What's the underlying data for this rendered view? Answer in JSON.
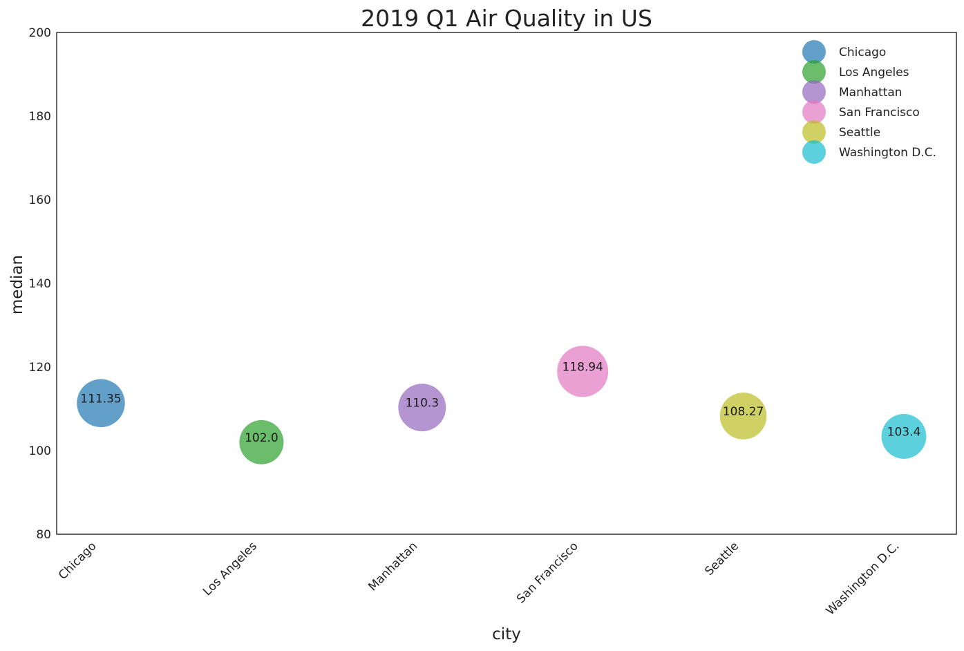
{
  "chart_data": {
    "type": "scatter",
    "title": "2019 Q1 Air Quality in US",
    "xlabel": "city",
    "ylabel": "median",
    "ylim": [
      80,
      200
    ],
    "yticks": [
      80,
      100,
      120,
      140,
      160,
      180,
      200
    ],
    "grid": false,
    "legend": "top-right",
    "categories": [
      "Chicago",
      "Los Angeles",
      "Manhattan",
      "San Francisco",
      "Seattle",
      "Washington D.C."
    ],
    "series": [
      {
        "name": "Chicago",
        "x": "Chicago",
        "y": 111.35,
        "label": "111.35",
        "color": "#1f77b4"
      },
      {
        "name": "Los Angeles",
        "x": "Los Angeles",
        "y": 102.0,
        "label": "102.0",
        "color": "#2ca02c"
      },
      {
        "name": "Manhattan",
        "x": "Manhattan",
        "y": 110.3,
        "label": "110.3",
        "color": "#9467bd"
      },
      {
        "name": "San Francisco",
        "x": "San Francisco",
        "y": 118.94,
        "label": "118.94",
        "color": "#e377c2"
      },
      {
        "name": "Seattle",
        "x": "Seattle",
        "y": 108.27,
        "label": "108.27",
        "color": "#bcbd22"
      },
      {
        "name": "Washington D.C.",
        "x": "Washington D.C.",
        "y": 103.4,
        "label": "103.4",
        "color": "#17becf"
      }
    ]
  }
}
